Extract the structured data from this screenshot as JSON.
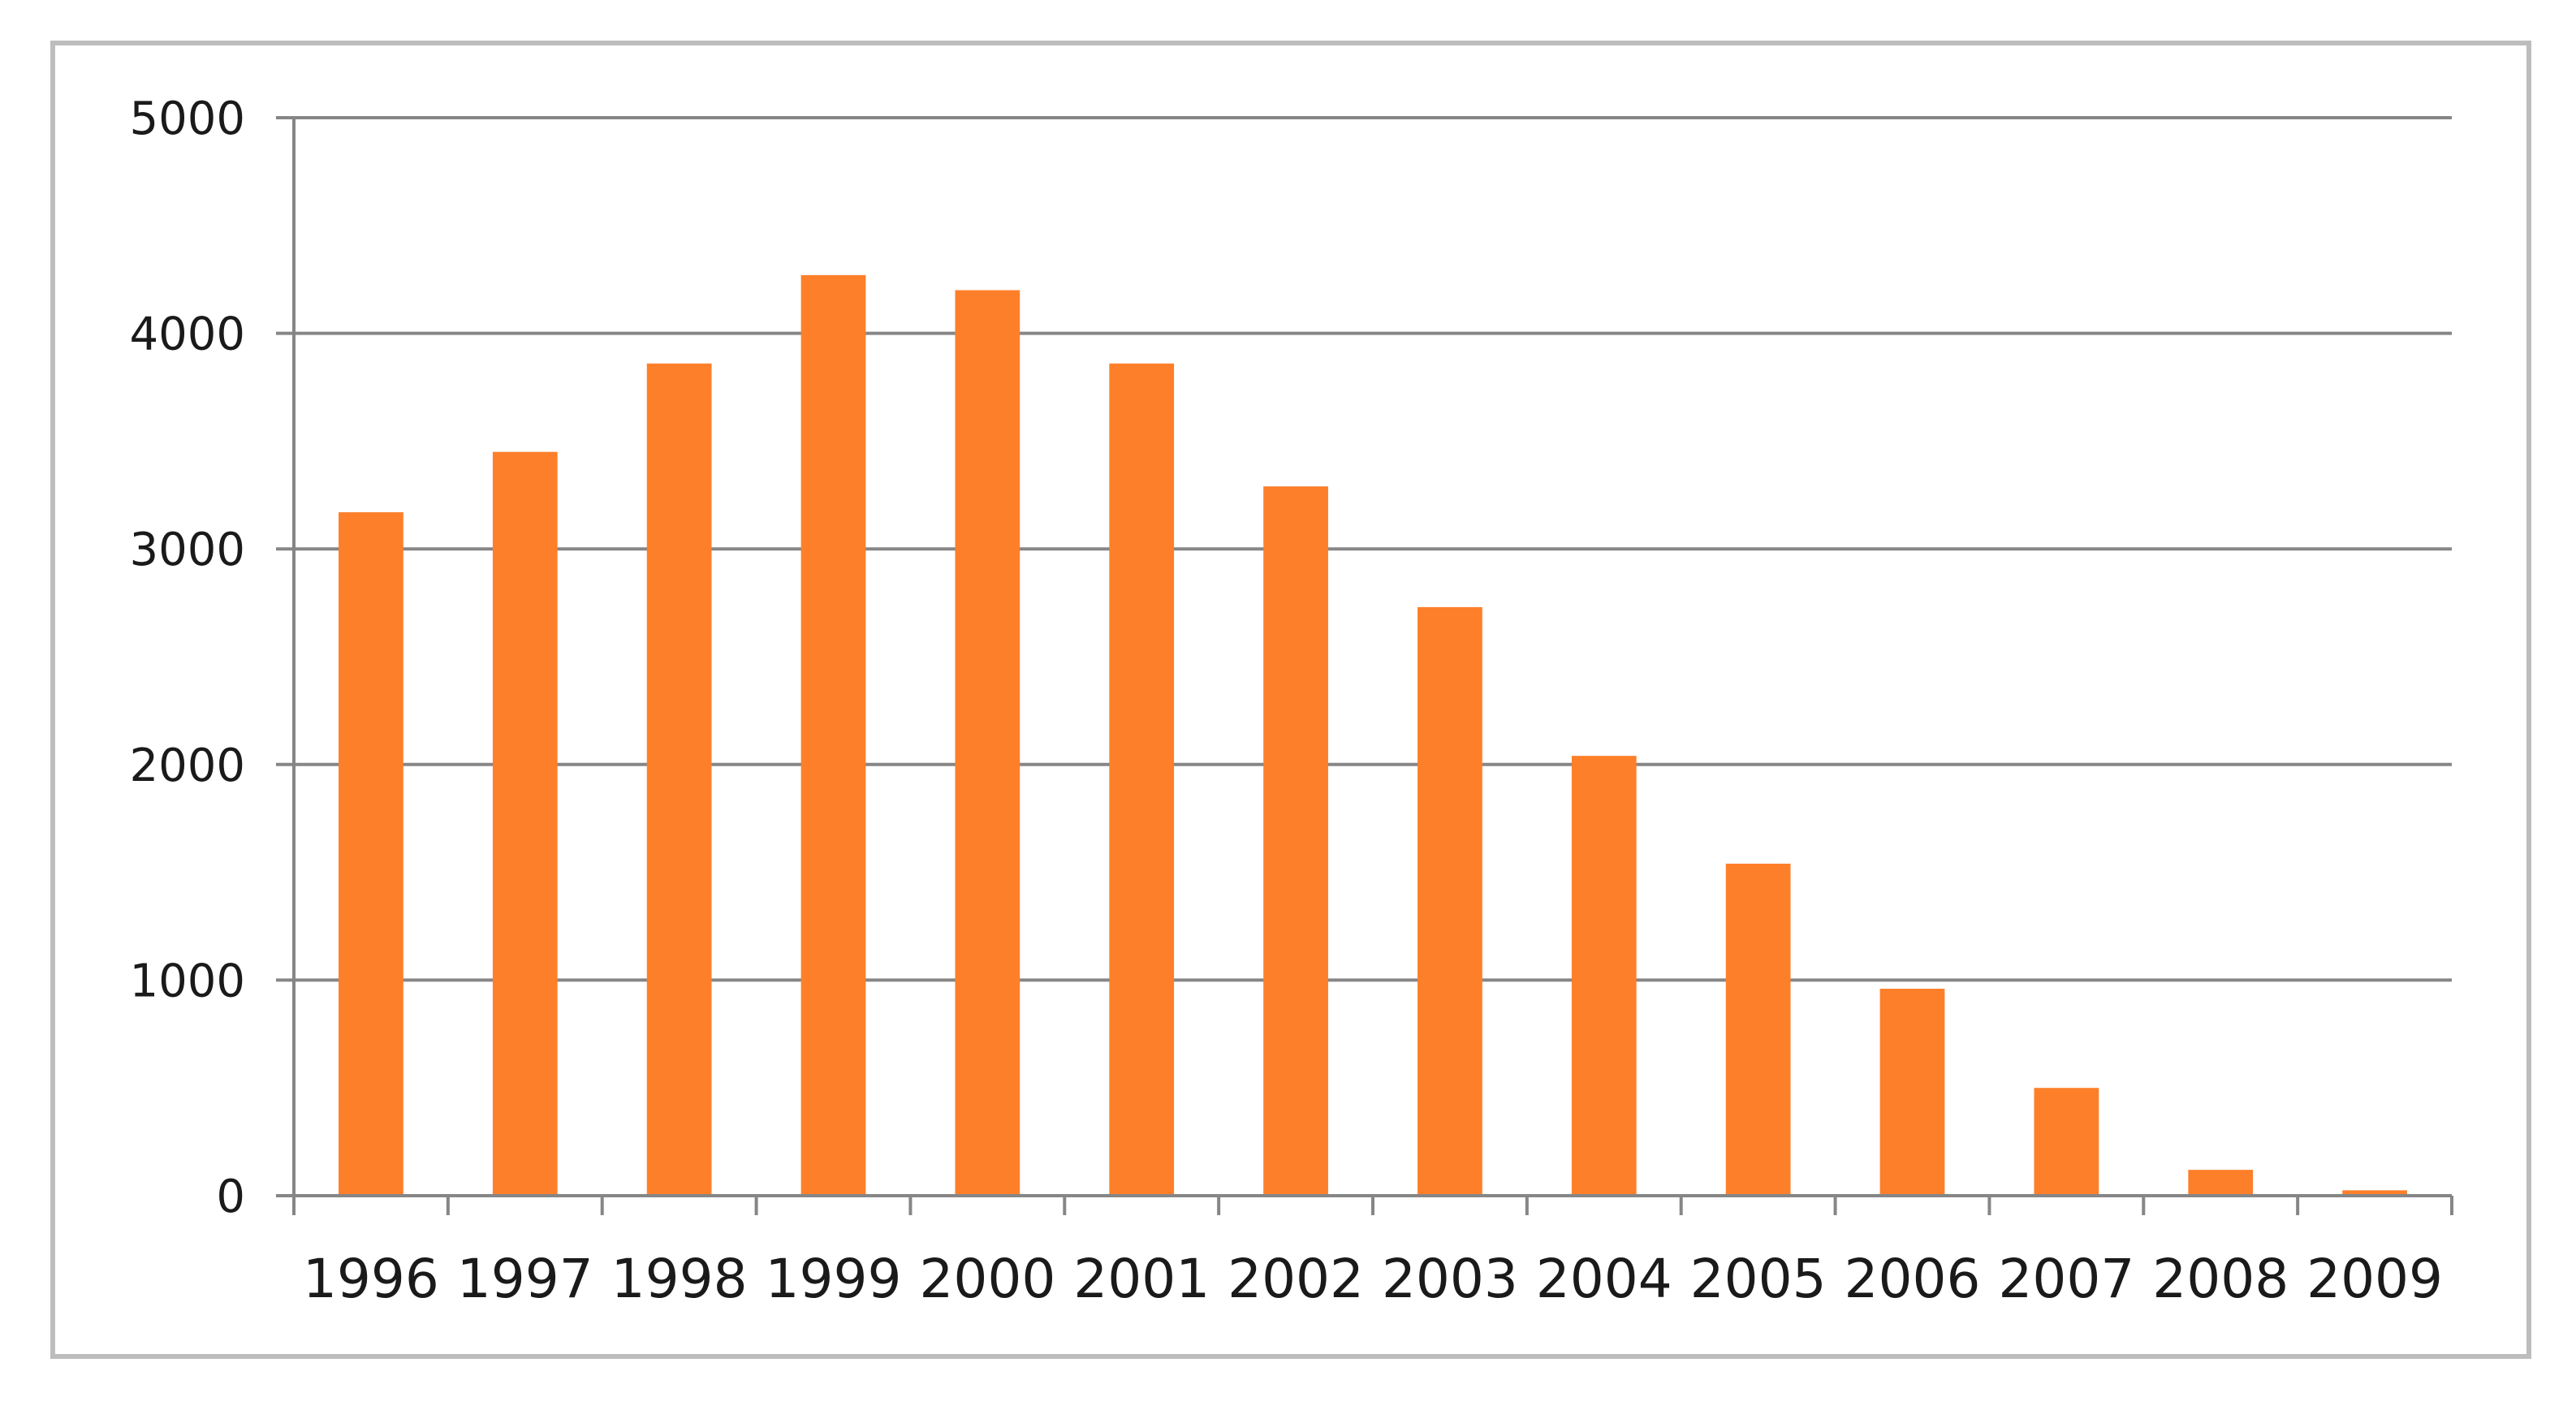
{
  "chart_data": {
    "type": "bar",
    "title": "",
    "xlabel": "",
    "ylabel": "",
    "categories": [
      "1996",
      "1997",
      "1998",
      "1999",
      "2000",
      "2001",
      "2002",
      "2003",
      "2004",
      "2005",
      "2006",
      "2007",
      "2008",
      "2009"
    ],
    "values": [
      3170,
      3450,
      3860,
      4270,
      4200,
      3860,
      3290,
      2730,
      2040,
      1540,
      960,
      500,
      120,
      25
    ],
    "ylim": [
      0,
      5000
    ],
    "yticks": [
      "0",
      "1000",
      "2000",
      "3000",
      "4000",
      "5000"
    ],
    "grid": true,
    "legend": "none",
    "bar_color": "#fe7f2a",
    "grid_color": "#868686",
    "axis_color": "#868686"
  }
}
